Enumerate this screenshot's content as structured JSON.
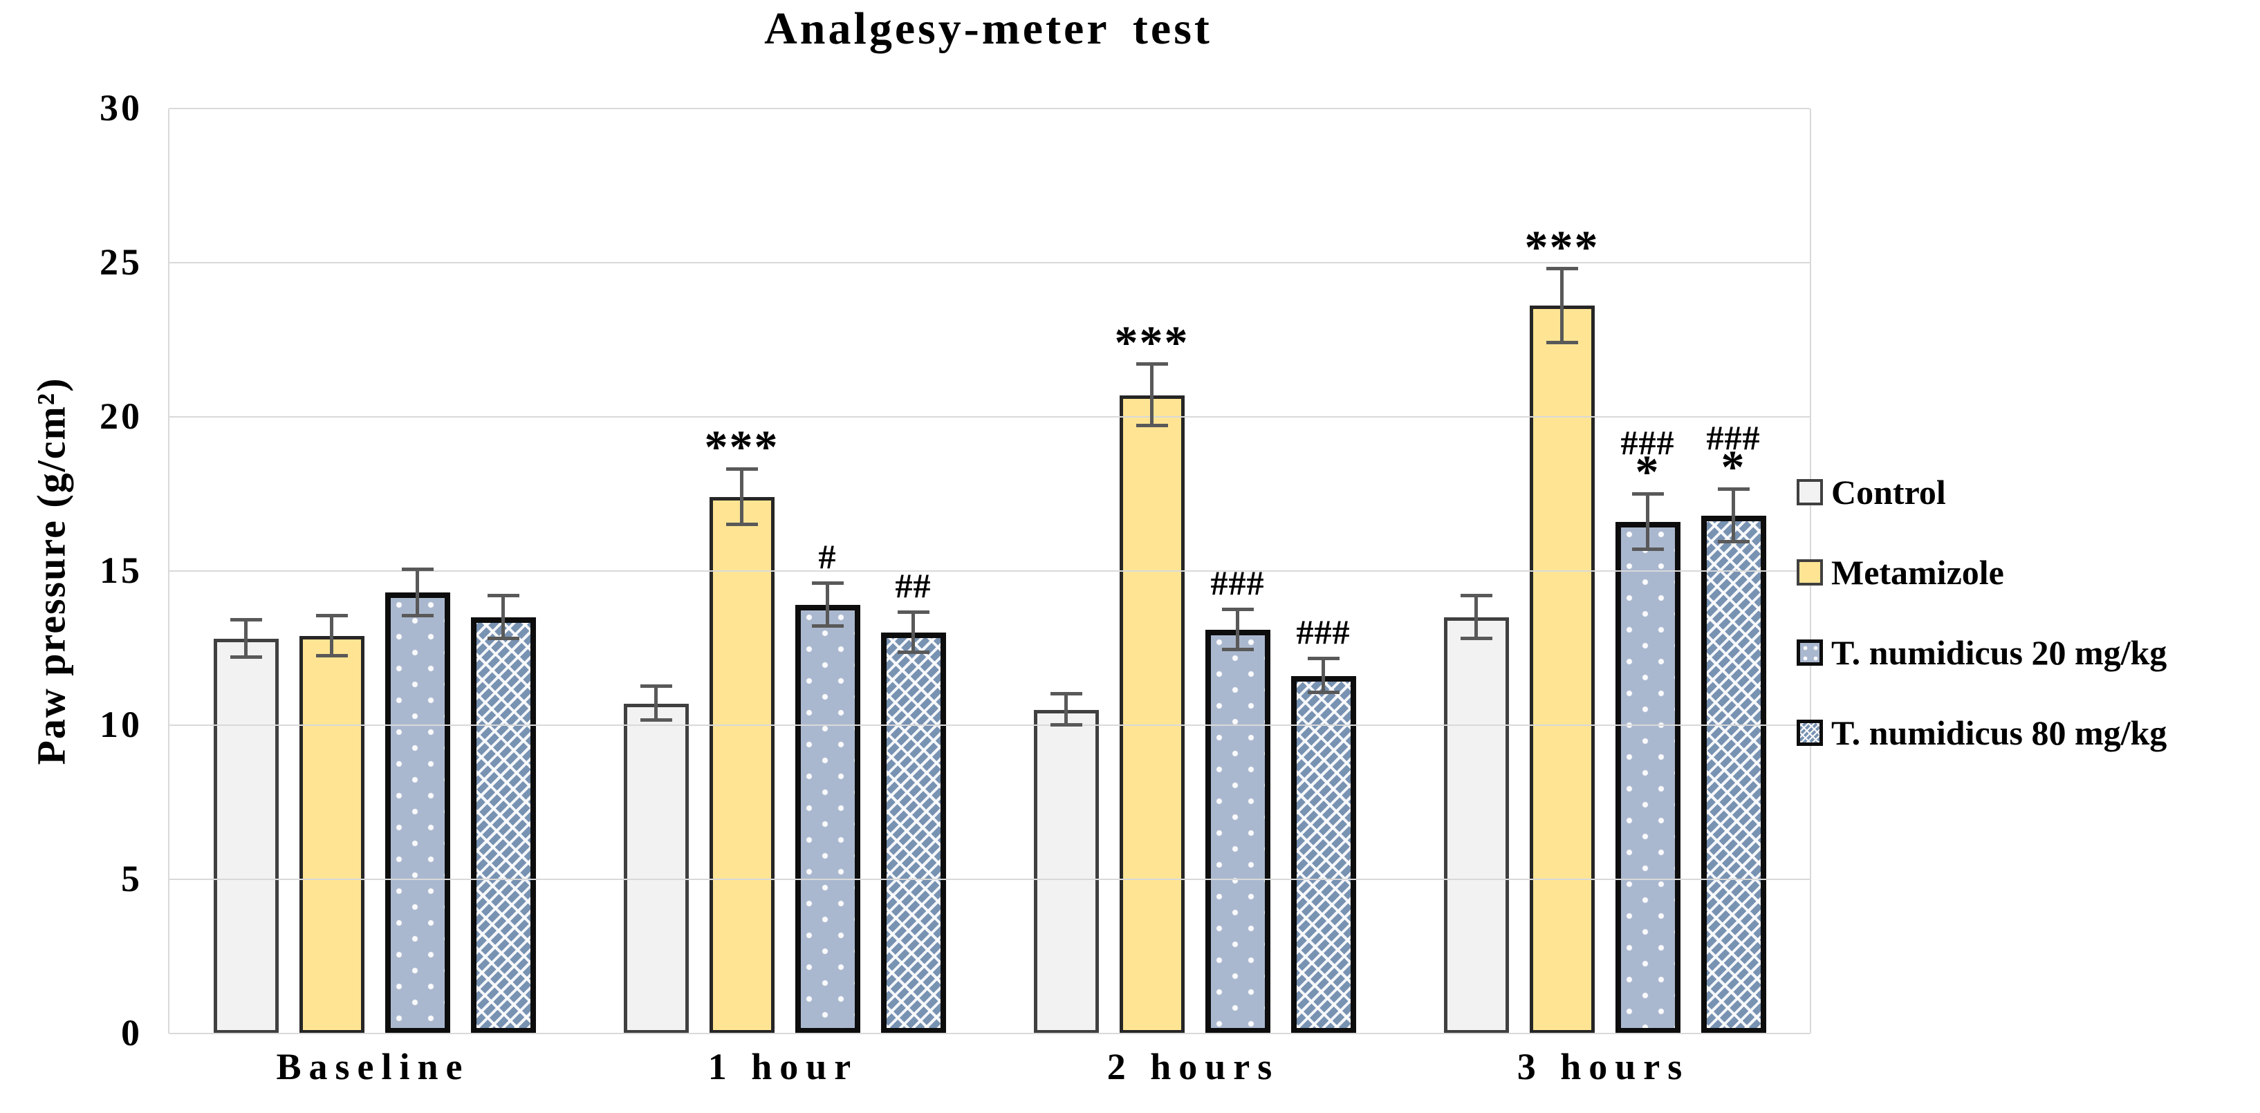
{
  "chart_data": {
    "type": "bar",
    "title": "Analgesy-meter test",
    "xlabel": "",
    "ylabel": "Paw pressure (g/cm²)",
    "ylim": [
      0,
      30
    ],
    "yticks": [
      0,
      5,
      10,
      15,
      20,
      25,
      30
    ],
    "grid": "horizontal",
    "legend_position": "right-middle",
    "categories": [
      "Baseline",
      "1 hour",
      "2 hours",
      "3 hours"
    ],
    "series": [
      {
        "name": "Control",
        "style": "control",
        "values": [
          12.8,
          10.7,
          10.5,
          13.5
        ],
        "errors": [
          0.6,
          0.55,
          0.5,
          0.7
        ],
        "annotations": [
          "",
          "",
          "",
          ""
        ]
      },
      {
        "name": "Metamizole",
        "style": "metamizole",
        "values": [
          12.9,
          17.4,
          20.7,
          23.6
        ],
        "errors": [
          0.65,
          0.9,
          1.0,
          1.2
        ],
        "annotations": [
          "",
          "***",
          "***",
          "***"
        ]
      },
      {
        "name": "T. numidicus 20 mg/kg",
        "style": "tn20",
        "values": [
          14.3,
          13.9,
          13.1,
          16.6
        ],
        "errors": [
          0.75,
          0.7,
          0.65,
          0.9
        ],
        "annotations": [
          "",
          "#",
          "###",
          "###\n*"
        ]
      },
      {
        "name": "T. numidicus 80 mg/kg",
        "style": "tn80",
        "values": [
          13.5,
          13.0,
          11.6,
          16.8
        ],
        "errors": [
          0.7,
          0.65,
          0.55,
          0.85
        ],
        "annotations": [
          "",
          "##",
          "###",
          "###\n*"
        ]
      }
    ],
    "colors": {
      "control_fill": "#f2f2f2",
      "control_border": "#404040",
      "metamizole_fill": "#ffe593",
      "metamizole_border": "#262626",
      "tn20_fill": "#aab8cf",
      "tn80_fill": "#7892b2",
      "pattern_border": "#0d0d0d",
      "gridline": "#d9d9d9",
      "error_bar": "#595959"
    }
  }
}
